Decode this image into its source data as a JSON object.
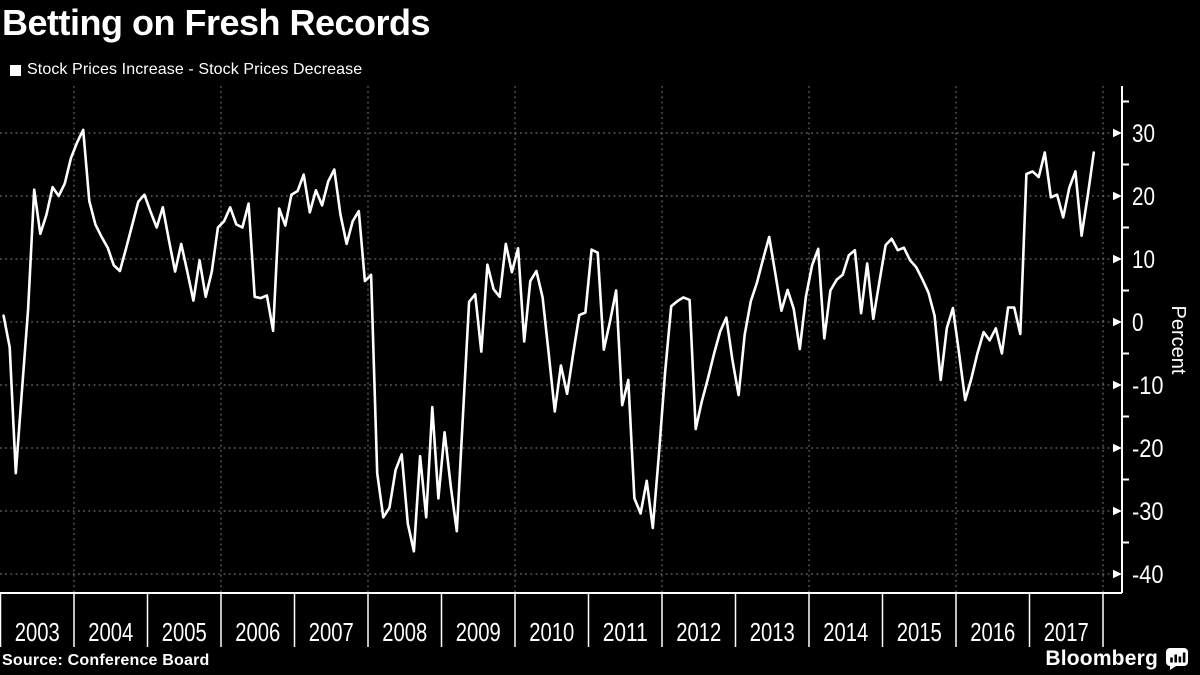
{
  "title": "Betting on Fresh Records",
  "legend": {
    "label": "Stock Prices Increase - Stock Prices Decrease"
  },
  "source": "Source: Conference Board",
  "brand": {
    "name": "Bloomberg"
  },
  "y_axis": {
    "label": "Percent",
    "tick_labels": [
      "30",
      "20",
      "10",
      "0",
      "-10",
      "-20",
      "-30",
      "-40"
    ],
    "ticks": [
      30,
      20,
      10,
      0,
      -10,
      -20,
      -30,
      -40
    ],
    "minor_ticks": [
      35,
      25,
      15,
      5,
      -5,
      -15,
      -25,
      -35
    ]
  },
  "x_axis": {
    "years": [
      "2003",
      "2004",
      "2005",
      "2006",
      "2007",
      "2008",
      "2009",
      "2010",
      "2011",
      "2012",
      "2013",
      "2014",
      "2015",
      "2016",
      "2017"
    ]
  },
  "colors": {
    "background": "#000000",
    "line": "#ffffff",
    "grid": "#a0a0a0",
    "text": "#ffffff"
  },
  "chart_data": {
    "type": "line",
    "series_name": "Stock Prices Increase - Stock Prices Decrease",
    "title": "Betting on Fresh Records",
    "ylabel": "Percent",
    "unit": "percent",
    "x_start": "2003-01",
    "x_end": "2017-11",
    "frequency": "monthly",
    "ylim": [
      -43,
      37.5
    ],
    "grid": "dashed",
    "legend_position": "top-left",
    "values": [
      1,
      -4,
      -24,
      -11,
      2,
      21,
      14,
      17,
      21.4,
      20,
      22,
      26,
      28.5,
      30.5,
      19.2,
      15.5,
      13.5,
      11.8,
      9,
      8.1,
      11.7,
      15.4,
      19.1,
      20.2,
      17.5,
      15,
      18.2,
      13,
      8,
      12.4,
      8,
      3.4,
      9.8,
      4,
      8,
      15,
      16,
      18.2,
      15.5,
      15,
      18.8,
      4,
      3.8,
      4.2,
      -1.4,
      18,
      15.3,
      20.2,
      20.8,
      23.4,
      17.4,
      20.9,
      18.5,
      22.3,
      24.2,
      17.1,
      12.4,
      16,
      17.6,
      6.5,
      7.5,
      -24,
      -31,
      -29.5,
      -23.5,
      -21,
      -32,
      -36.4,
      -21.3,
      -31,
      -13.5,
      -28,
      -17.5,
      -26,
      -33.2,
      -15,
      3.2,
      4.4,
      -4.7,
      9.1,
      5.2,
      4,
      12.4,
      7.9,
      11.7,
      -3.1,
      6.5,
      8.1,
      3.9,
      -5,
      -14.2,
      -6.9,
      -11.4,
      -5,
      1.1,
      1.5,
      11.5,
      11,
      -4.4,
      0,
      5,
      -13.2,
      -9.2,
      -28,
      -30.4,
      -25.2,
      -32.7,
      -21,
      -8,
      2.5,
      3.3,
      3.9,
      3.5,
      -17,
      -12.6,
      -9,
      -5,
      -1.5,
      0.7,
      -6,
      -11.6,
      -2,
      3.3,
      6.2,
      10,
      13.5,
      7.7,
      1.8,
      5.1,
      2.1,
      -4.3,
      4,
      9,
      11.6,
      -2.6,
      5,
      6.7,
      7.5,
      10.6,
      11.4,
      1.4,
      9.3,
      0.5,
      6.4,
      12.2,
      13.2,
      11.4,
      11.8,
      9.8,
      8.7,
      6.8,
      4.7,
      1,
      -9.2,
      -1,
      2.2,
      -5,
      -12.4,
      -9,
      -5,
      -1.6,
      -2.9,
      -1,
      -5,
      2.3,
      2.3,
      -1.9,
      23.5,
      23.9,
      23,
      26.9,
      19.8,
      20.2,
      16.6,
      21.3,
      23.9,
      13.7,
      20,
      26.9
    ]
  }
}
